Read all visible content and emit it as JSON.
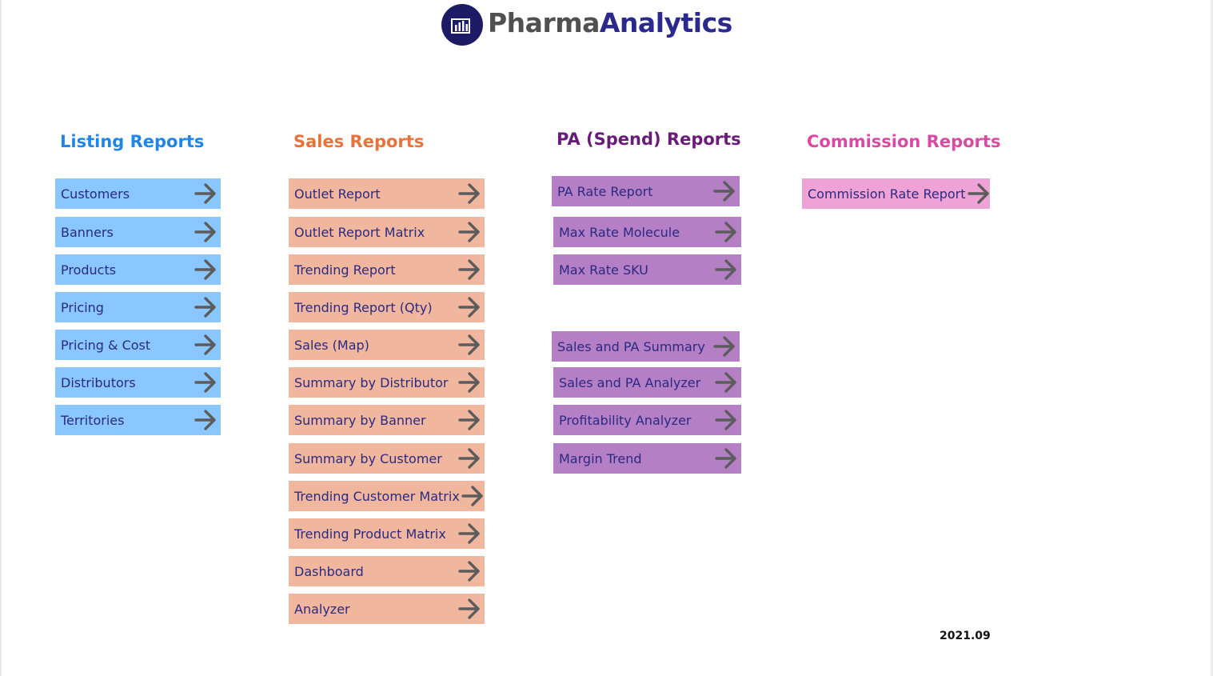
{
  "logo": {
    "part1": "Pharma",
    "part2": "Analytics"
  },
  "headings": {
    "listing": "Listing Reports",
    "sales": "Sales Reports",
    "pa": "PA (Spend) Reports",
    "commission": "Commission Reports"
  },
  "colors": {
    "listing_heading": "#1f86e8",
    "sales_heading": "#e8733a",
    "pa_heading": "#6a1b7a",
    "commission_heading": "#d94aa3",
    "listing_button": "#8ac6ff",
    "sales_button": "#f1b79e",
    "pa_button": "#b57fc6",
    "commission_button": "#efa2d6",
    "button_text": "#2a2a82",
    "arrow": "#5c5c5c"
  },
  "listing": [
    "Customers",
    "Banners",
    "Products",
    "Pricing",
    "Pricing & Cost",
    "Distributors",
    "Territories"
  ],
  "sales": [
    "Outlet Report",
    "Outlet Report Matrix",
    "Trending Report",
    "Trending Report (Qty)",
    "Sales (Map)",
    "Summary by Distributor",
    "Summary by Banner",
    "Summary by Customer",
    "Trending Customer Matrix",
    "Trending Product Matrix",
    "Dashboard",
    "Analyzer"
  ],
  "pa": [
    "PA Rate Report",
    "Max Rate Molecule",
    "Max Rate SKU",
    "Sales and PA Summary",
    "Sales and PA Analyzer",
    "Profitability Analyzer",
    "Margin Trend"
  ],
  "commission": [
    "Commission Rate Report"
  ],
  "version": "2021.09"
}
